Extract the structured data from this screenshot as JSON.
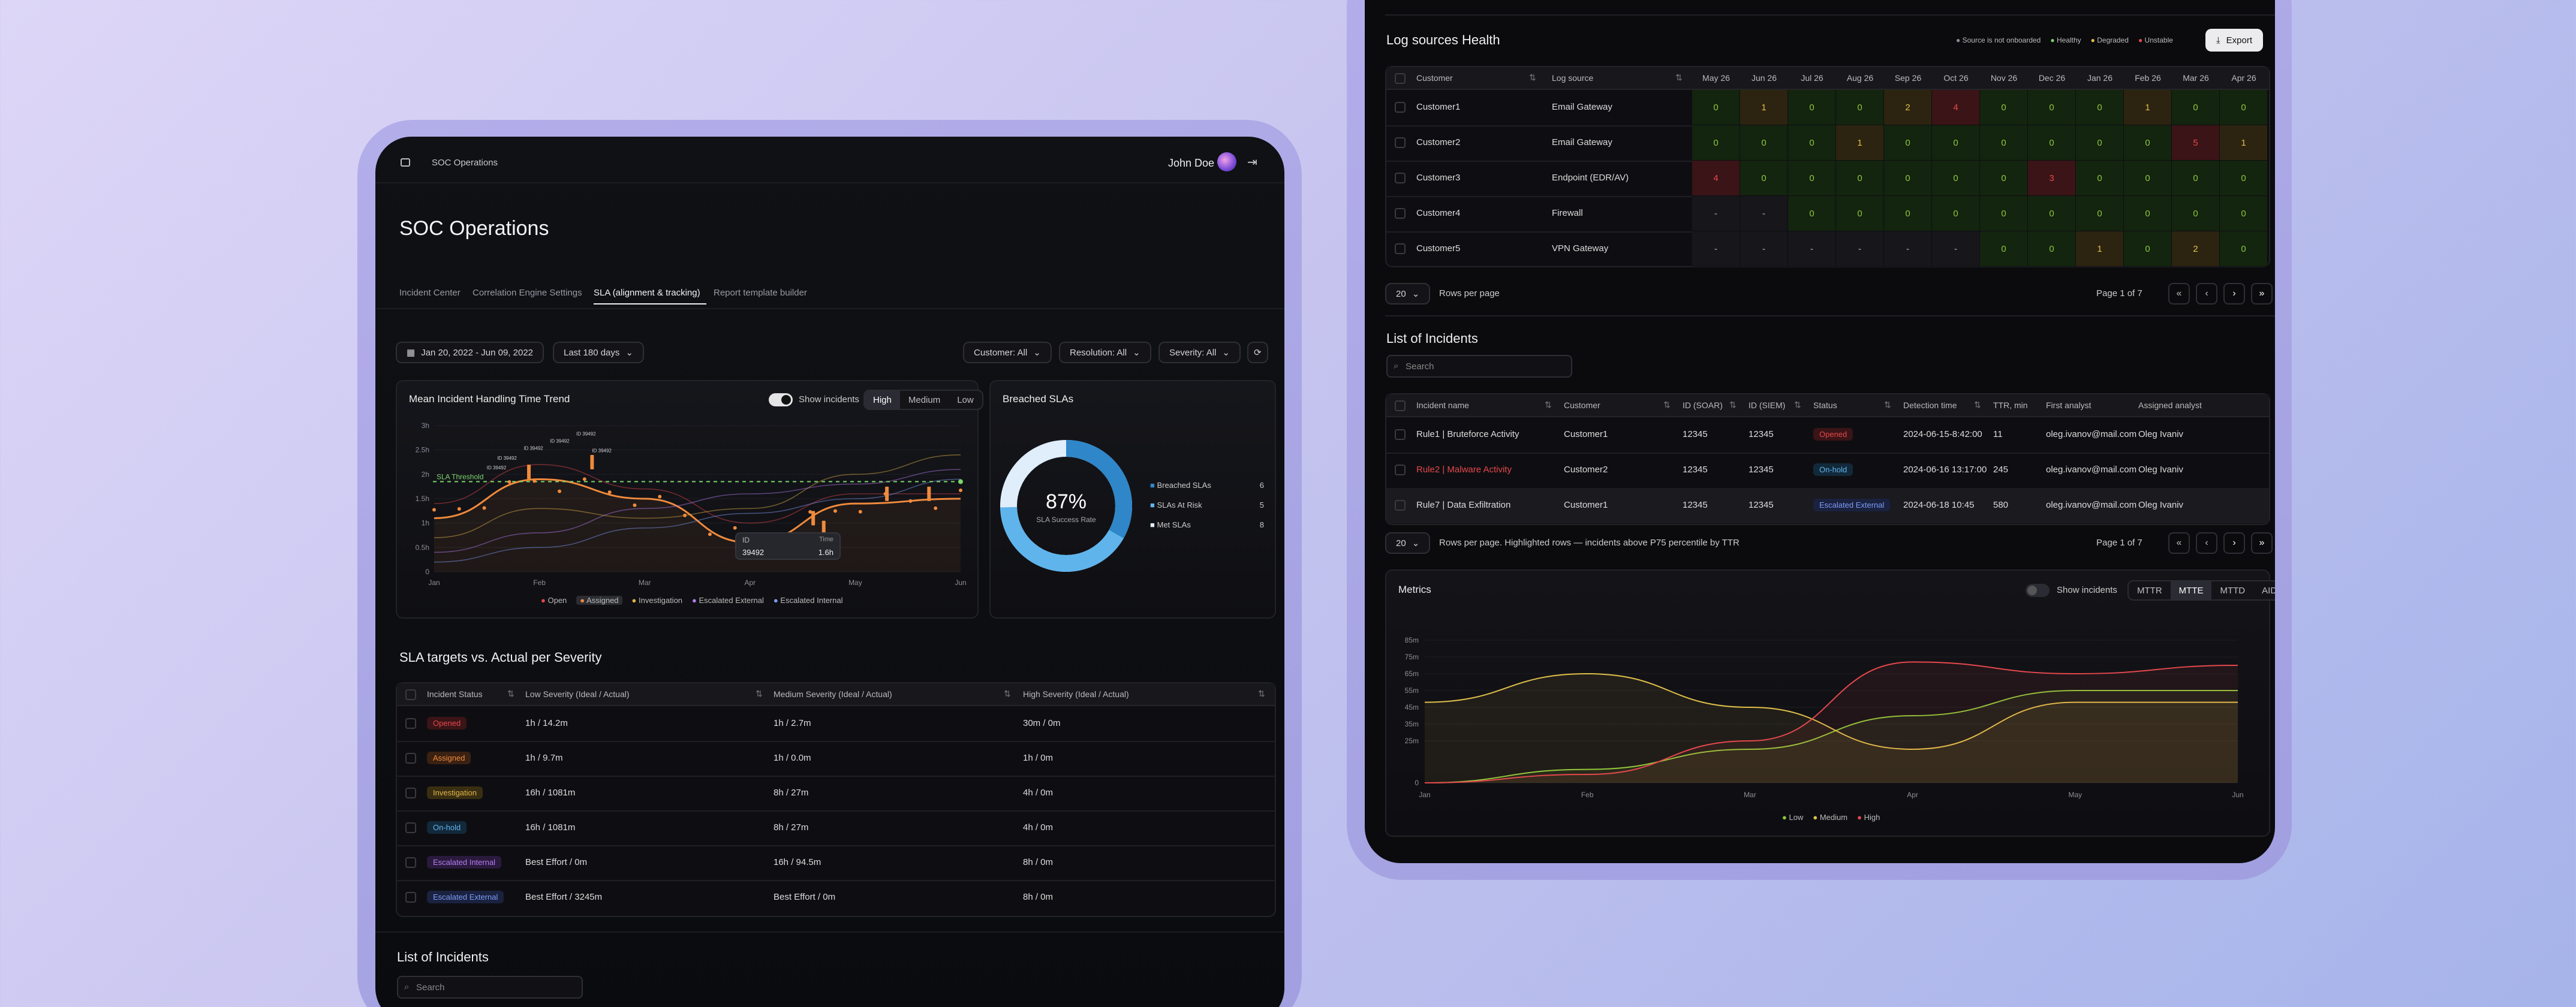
{
  "left": {
    "breadcrumb": "SOC Operations",
    "user": "John Doe",
    "page_title": "SOC Operations",
    "tabs": [
      "Incident Center",
      "Correlation Engine Settings",
      "SLA (alignment & tracking)",
      "Report template builder"
    ],
    "date_range": "Jan 20, 2022 - Jun 09, 2022",
    "period": "Last 180 days",
    "filters": [
      "Customer: All",
      "Resolution: All",
      "Severity: All"
    ],
    "trend": {
      "title": "Mean Incident Handling Time Trend",
      "show_incidents": "Show incidents",
      "severity": [
        "High",
        "Medium",
        "Low"
      ],
      "y_ticks": [
        "3h",
        "2.5h",
        "2h",
        "1.5h",
        "1h",
        "0.5h",
        "0"
      ],
      "x_ticks": [
        "Jan",
        "Feb",
        "Mar",
        "Apr",
        "May",
        "Jun"
      ],
      "threshold": "SLA Threshold",
      "tooltip": {
        "id_label": "ID",
        "time_label": "Time",
        "id": "39492",
        "time": "1.6h"
      },
      "legend": [
        "Open",
        "Assigned",
        "Investigation",
        "Escalated External",
        "Escalated Internal"
      ],
      "point_labels": [
        "ID 39492",
        "ID 39492",
        "ID 39492",
        "ID 39492",
        "ID 39492",
        "ID 39492"
      ]
    },
    "chart_data": {
      "type": "line",
      "title": "Mean Incident Handling Time Trend",
      "categories": [
        "Jan",
        "Feb",
        "Mar",
        "Apr",
        "May",
        "Jun"
      ],
      "ylim": [
        0,
        3
      ],
      "threshold": 1.85,
      "series": [
        {
          "name": "Open",
          "values": [
            1.4,
            2.2,
            1.7,
            1.0,
            1.6,
            1.6
          ]
        },
        {
          "name": "Assigned",
          "values": [
            1.1,
            1.9,
            1.5,
            0.6,
            1.4,
            1.5
          ]
        },
        {
          "name": "Investigation",
          "values": [
            0.7,
            1.3,
            1.1,
            1.3,
            2.0,
            2.4
          ]
        },
        {
          "name": "Escalated External",
          "values": [
            0.4,
            0.8,
            1.3,
            1.6,
            1.8,
            2.1
          ]
        },
        {
          "name": "Escalated Internal",
          "values": [
            0.2,
            0.5,
            0.9,
            1.2,
            1.5,
            1.9
          ]
        }
      ]
    },
    "breached": {
      "title": "Breached SLAs",
      "pct": "87%",
      "sub": "SLA Success Rate",
      "legend": [
        {
          "label": "Breached SLAs",
          "value": "6",
          "color": "#2f86c8"
        },
        {
          "label": "SLAs At Risk",
          "value": "5",
          "color": "#5fb4ec"
        },
        {
          "label": "Met SLAs",
          "value": "8",
          "color": "#dfeefa"
        }
      ]
    },
    "sla": {
      "title": "SLA targets vs. Actual per Severity",
      "headers": [
        "Incident Status",
        "Low Severity (Ideal / Actual)",
        "Medium Severity (Ideal / Actual)",
        "High Severity (Ideal / Actual)"
      ],
      "rows": [
        {
          "status": "Opened",
          "c": "#e5484d",
          "bg": "#3a1416",
          "low": "1h / 14.2m",
          "med": "1h / 2.7m",
          "high": "30m / 0m"
        },
        {
          "status": "Assigned",
          "c": "#f08a3c",
          "bg": "#3a2112",
          "low": "1h / 9.7m",
          "med": "1h / 0.0m",
          "high": "1h / 0m"
        },
        {
          "status": "Investigation",
          "c": "#e0b44a",
          "bg": "#3a2e12",
          "low": "16h / 1081m",
          "med": "8h / 27m",
          "high": "4h / 0m"
        },
        {
          "status": "On-hold",
          "c": "#5fb4ec",
          "bg": "#12293a",
          "low": "16h / 1081m",
          "med": "8h / 27m",
          "high": "4h / 0m"
        },
        {
          "status": "Escalated Internal",
          "c": "#b57cf0",
          "bg": "#2a1a3e",
          "low": "Best Effort / 0m",
          "med": "16h / 94.5m",
          "high": "8h / 0m"
        },
        {
          "status": "Escalated External",
          "c": "#7e9cf5",
          "bg": "#1a2240",
          "low": "Best Effort / 3245m",
          "med": "Best Effort / 0m",
          "high": "8h / 0m"
        }
      ]
    },
    "list_title": "List of Incidents",
    "search_placeholder": "Search"
  },
  "right": {
    "health": {
      "title": "Log sources Health",
      "legend": [
        "Source is not onboarded",
        "Healthy",
        "Degraded",
        "Unstable"
      ],
      "export": "Export",
      "cols": [
        "Customer",
        "Log source"
      ],
      "months": [
        "May 26",
        "Jun 26",
        "Jul 26",
        "Aug 26",
        "Sep 26",
        "Oct 26",
        "Nov 26",
        "Dec 26",
        "Jan 26",
        "Feb 26",
        "Mar 26",
        "Apr 26"
      ],
      "rows": [
        {
          "customer": "Customer1",
          "source": "Email Gateway",
          "cells": [
            "0",
            "1",
            "0",
            "0",
            "2",
            "4",
            "0",
            "0",
            "0",
            "1",
            "0",
            "0"
          ],
          "state": [
            "h",
            "d",
            "h",
            "h",
            "d",
            "u",
            "h",
            "h",
            "h",
            "d",
            "h",
            "h"
          ]
        },
        {
          "customer": "Customer2",
          "source": "Email Gateway",
          "cells": [
            "0",
            "0",
            "0",
            "1",
            "0",
            "0",
            "0",
            "0",
            "0",
            "0",
            "5",
            "1"
          ],
          "state": [
            "h",
            "h",
            "h",
            "d",
            "h",
            "h",
            "h",
            "h",
            "h",
            "h",
            "u",
            "d"
          ]
        },
        {
          "customer": "Customer3",
          "source": "Endpoint (EDR/AV)",
          "cells": [
            "4",
            "0",
            "0",
            "0",
            "0",
            "0",
            "0",
            "3",
            "0",
            "0",
            "0",
            "0"
          ],
          "state": [
            "u",
            "h",
            "h",
            "h",
            "h",
            "h",
            "h",
            "u",
            "h",
            "h",
            "h",
            "h"
          ]
        },
        {
          "customer": "Customer4",
          "source": "Firewall",
          "cells": [
            "-",
            "-",
            "0",
            "0",
            "0",
            "0",
            "0",
            "0",
            "0",
            "0",
            "0",
            "0"
          ],
          "state": [
            "n",
            "n",
            "h",
            "h",
            "h",
            "h",
            "h",
            "h",
            "h",
            "h",
            "h",
            "h"
          ]
        },
        {
          "customer": "Customer5",
          "source": "VPN Gateway",
          "cells": [
            "-",
            "-",
            "-",
            "-",
            "-",
            "-",
            "0",
            "0",
            "1",
            "0",
            "2",
            "0"
          ],
          "state": [
            "n",
            "n",
            "n",
            "n",
            "n",
            "n",
            "h",
            "h",
            "d",
            "h",
            "d",
            "h"
          ]
        }
      ],
      "page_size": "20",
      "rows_per_page": "Rows per page",
      "page": "Page 1 of 7"
    },
    "incidents": {
      "title": "List of Incidents",
      "search_placeholder": "Search",
      "headers": [
        "Incident name",
        "Customer",
        "ID (SOAR)",
        "ID (SIEM)",
        "Status",
        "Detection time",
        "TTR, min",
        "First analyst",
        "Assigned analyst"
      ],
      "rows": [
        {
          "name": "Rule1 | Bruteforce Activity",
          "customer": "Customer1",
          "soar": "12345",
          "siem": "12345",
          "status": "Opened",
          "sc": "#e5484d",
          "sbg": "#3a1416",
          "time": "2024-06-15-8:42:00",
          "ttr": "11",
          "first": "oleg.ivanov@mail.com",
          "assigned": "Oleg Ivaniv",
          "hl": false
        },
        {
          "name": "Rule2 | Malware Activity",
          "customer": "Customer2",
          "soar": "12345",
          "siem": "12345",
          "status": "On-hold",
          "sc": "#5fb4ec",
          "sbg": "#12293a",
          "time": "2024-06-16 13:17:00",
          "ttr": "245",
          "first": "oleg.ivanov@mail.com",
          "assigned": "Oleg Ivaniv",
          "hl": true
        },
        {
          "name": "Rule7 | Data Exfiltration",
          "customer": "Customer1",
          "soar": "12345",
          "siem": "12345",
          "status": "Escalated External",
          "sc": "#7e9cf5",
          "sbg": "#1a2240",
          "time": "2024-06-18 10:45",
          "ttr": "580",
          "first": "oleg.ivanov@mail.com",
          "assigned": "Oleg Ivaniv",
          "hl": false
        }
      ],
      "page_size": "20",
      "rows_note": "Rows per page. Highlighted rows — incidents above P75 percentile by TTR",
      "page": "Page 1 of 7"
    },
    "metrics": {
      "title": "Metrics",
      "show_incidents": "Show incidents",
      "tabs": [
        "MTTR",
        "MTTE",
        "MTTD",
        "AID"
      ],
      "y_ticks": [
        "85m",
        "75m",
        "65m",
        "55m",
        "45m",
        "35m",
        "25m",
        "0"
      ],
      "x_ticks": [
        "Jan",
        "Feb",
        "Mar",
        "Apr",
        "May",
        "Jun"
      ],
      "legend": [
        "Low",
        "Medium",
        "High"
      ]
    },
    "chart_data": {
      "type": "area",
      "title": "Metrics",
      "categories": [
        "Jan",
        "Feb",
        "Mar",
        "Apr",
        "May",
        "Jun"
      ],
      "ylim": [
        0,
        90
      ],
      "series": [
        {
          "name": "Low",
          "values": [
            0,
            8,
            20,
            40,
            55,
            55
          ],
          "color": "#8fc93a"
        },
        {
          "name": "Medium",
          "values": [
            48,
            65,
            45,
            20,
            48,
            48
          ],
          "color": "#e0c04a"
        },
        {
          "name": "High",
          "values": [
            0,
            5,
            25,
            72,
            65,
            70
          ],
          "color": "#e5484d"
        }
      ]
    }
  }
}
